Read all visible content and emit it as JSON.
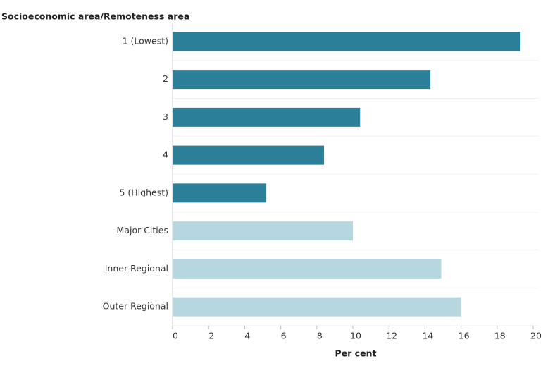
{
  "chart_data": {
    "type": "barh",
    "y_label": "Socioeconomic area/Remoteness area",
    "x_label": "Per cent",
    "categories": [
      "1 (Lowest)",
      "2",
      "3",
      "4",
      "5 (Highest)",
      "Major Cities",
      "Inner Regional",
      "Outer Regional"
    ],
    "values": [
      19.3,
      14.3,
      10.4,
      8.4,
      5.2,
      10.0,
      14.9,
      16.0
    ],
    "colors": [
      "#2b7f98",
      "#2b7f98",
      "#2b7f98",
      "#2b7f98",
      "#2b7f98",
      "#b7d7e0",
      "#b7d7e0",
      "#b7d7e0"
    ],
    "xlim": [
      0,
      20
    ],
    "xticks": [
      0,
      2,
      4,
      6,
      8,
      10,
      12,
      14,
      16,
      18,
      20
    ]
  }
}
